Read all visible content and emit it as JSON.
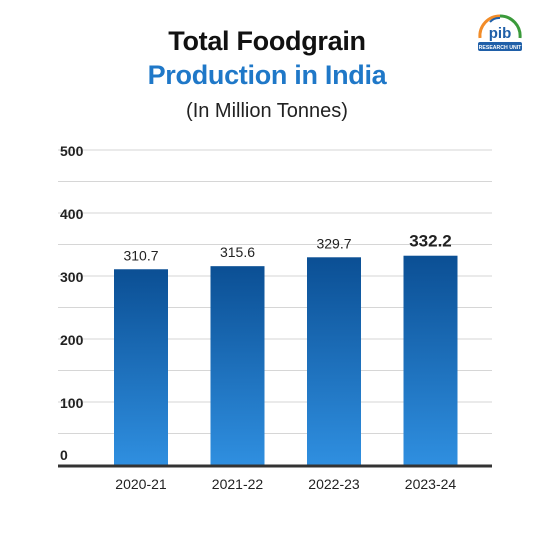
{
  "header": {
    "title_line1": "Total Foodgrain",
    "title_line2": "Production in India",
    "subtitle": "(In Million Tonnes)"
  },
  "logo": {
    "icon": "pib-logo-icon",
    "text": "pib",
    "subtext": "RESEARCH UNIT"
  },
  "colors": {
    "bar_top": "#0b4f94",
    "bar_bottom": "#2f8fe0",
    "title_accent": "#1f78c8",
    "axis": "#333333",
    "grid": "#d6d6d6"
  },
  "chart_data": {
    "type": "bar",
    "title": "Total Foodgrain Production in India",
    "subtitle": "(In Million Tonnes)",
    "categories": [
      "2020-21",
      "2021-22",
      "2022-23",
      "2023-24"
    ],
    "values": [
      310.7,
      315.6,
      329.7,
      332.2
    ],
    "value_labels": [
      "310.7",
      "315.6",
      "329.7",
      "332.2"
    ],
    "highlight_index": 3,
    "ylim": [
      0,
      500
    ],
    "yticks": [
      0,
      100,
      200,
      300,
      400,
      500
    ],
    "grid": true,
    "minor_grid_step": 50
  }
}
